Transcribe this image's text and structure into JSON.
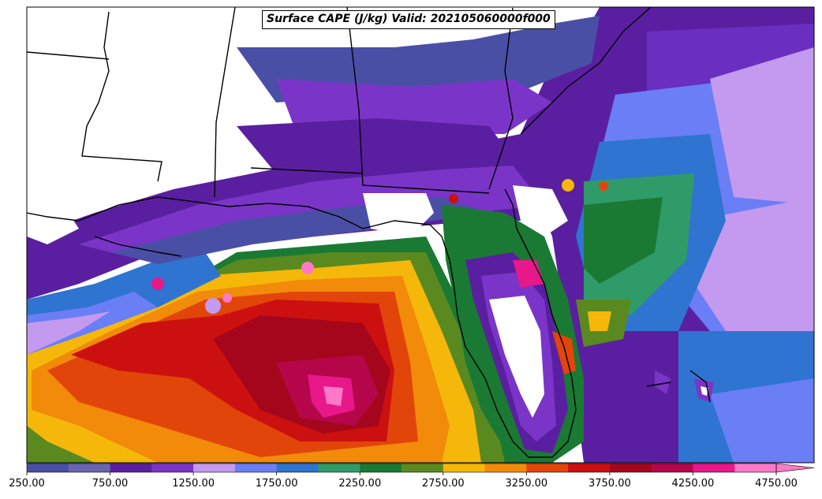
{
  "title": "Surface CAPE (J/kg) Valid: 202105060000f000",
  "colorbar": {
    "tick_labels": [
      "250.00",
      "750.00",
      "1250.00",
      "1750.00",
      "2250.00",
      "2750.00",
      "3250.00",
      "3750.00",
      "4250.00",
      "4750.00"
    ],
    "colors": [
      "#4a4fa6",
      "#6a65b0",
      "#5a1fa0",
      "#7a35c8",
      "#c49af0",
      "#6a7ef5",
      "#2f74d0",
      "#2f9b68",
      "#1a7a33",
      "#5a8a1f",
      "#f5b80a",
      "#f28a0a",
      "#e2450a",
      "#cc1010",
      "#a5061c",
      "#b5064a",
      "#e8178a",
      "#ff79c8"
    ],
    "extend": "max"
  }
}
